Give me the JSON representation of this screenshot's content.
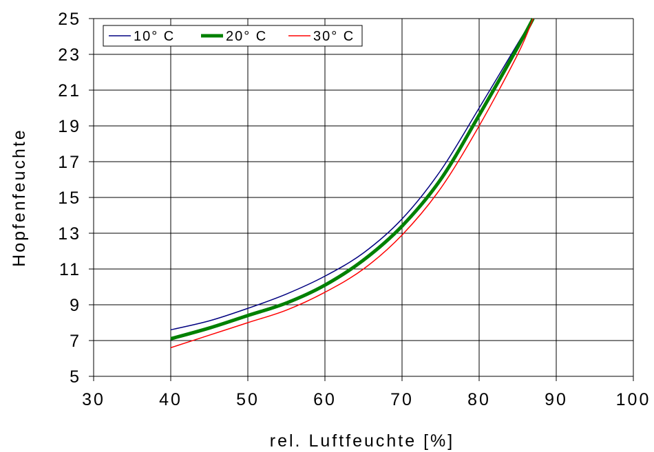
{
  "chart_data": {
    "type": "line",
    "title": "",
    "xlabel": "rel. Luftfeuchte [%]",
    "ylabel": "Hopfenfeuchte",
    "xlim": [
      30,
      100
    ],
    "ylim": [
      5,
      25
    ],
    "x_ticks": [
      30,
      40,
      50,
      60,
      70,
      80,
      90,
      100
    ],
    "y_ticks": [
      5,
      7,
      9,
      11,
      13,
      15,
      17,
      19,
      21,
      23,
      25
    ],
    "grid": true,
    "legend_position": "top-left",
    "series": [
      {
        "name": "10° C",
        "color": "#000080",
        "x": [
          40,
          45,
          50,
          55,
          60,
          65,
          70,
          75,
          80,
          85,
          87
        ],
        "y": [
          7.6,
          8.1,
          8.8,
          9.6,
          10.6,
          11.9,
          13.8,
          16.5,
          20.0,
          23.6,
          25.0
        ]
      },
      {
        "name": "20° C",
        "color": "#008000",
        "x": [
          40,
          45,
          50,
          55,
          60,
          65,
          70,
          75,
          80,
          85,
          87
        ],
        "y": [
          7.1,
          7.7,
          8.4,
          9.1,
          10.1,
          11.5,
          13.4,
          16.0,
          19.6,
          23.4,
          25.0
        ]
      },
      {
        "name": "30° C",
        "color": "#ff0000",
        "x": [
          40,
          45,
          50,
          55,
          60,
          65,
          70,
          75,
          80,
          85,
          87
        ],
        "y": [
          6.6,
          7.3,
          8.0,
          8.7,
          9.7,
          11.0,
          12.9,
          15.5,
          19.0,
          23.0,
          25.0
        ]
      }
    ]
  }
}
